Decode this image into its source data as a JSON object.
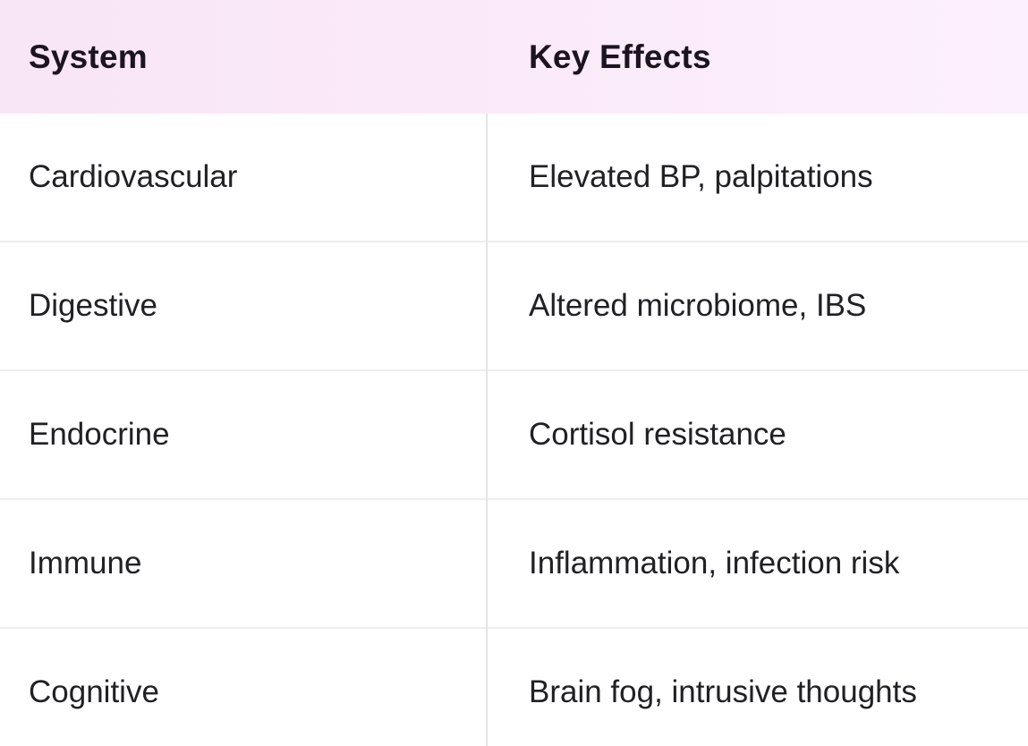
{
  "table": {
    "columns": [
      {
        "label": "System"
      },
      {
        "label": "Key Effects"
      }
    ],
    "rows": [
      {
        "system": "Cardiovascular",
        "effects": "Elevated BP, palpitations"
      },
      {
        "system": "Digestive",
        "effects": "Altered microbiome, IBS"
      },
      {
        "system": "Endocrine",
        "effects": "Cortisol resistance"
      },
      {
        "system": "Immune",
        "effects": "Inflammation, infection risk"
      },
      {
        "system": "Cognitive",
        "effects": "Brain fog, intrusive thoughts"
      }
    ],
    "colors": {
      "header_bg_left": "#f8e5f6",
      "header_bg_right": "#fdf0fd",
      "header_text": "#1c1420",
      "body_text": "#202124",
      "row_divider": "#ededed",
      "column_divider": "#e4e4e4",
      "body_bg": "#ffffff"
    }
  }
}
